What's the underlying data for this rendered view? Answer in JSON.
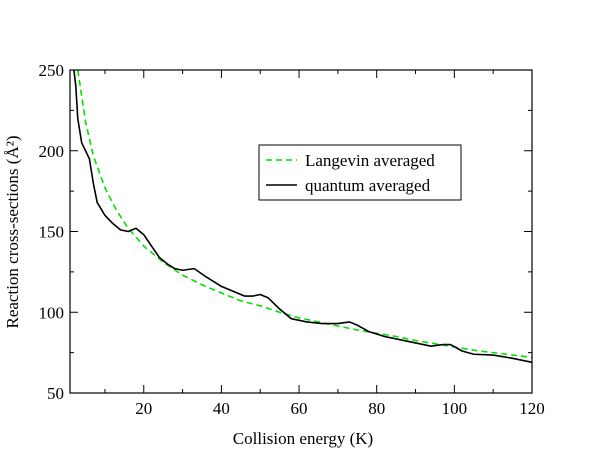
{
  "chart_data": {
    "type": "line",
    "title": "",
    "xlabel": "Collision energy (K)",
    "ylabel": "Reaction cross-sections (Å²)",
    "xlim": [
      1,
      120
    ],
    "ylim": [
      50,
      250
    ],
    "x_ticks": [
      20,
      40,
      60,
      80,
      100,
      120
    ],
    "y_ticks": [
      50,
      100,
      150,
      200,
      250
    ],
    "grid": false,
    "legend_position": "upper-right",
    "series": [
      {
        "name": "Langevin averaged",
        "color": "#00e000",
        "style": "dashed",
        "x": [
          3,
          5,
          7,
          10,
          13,
          16,
          20,
          25,
          30,
          35,
          40,
          45,
          50,
          55,
          60,
          65,
          70,
          75,
          80,
          85,
          90,
          95,
          100,
          105,
          110,
          115,
          120
        ],
        "y": [
          250,
          218,
          197,
          177,
          163,
          152,
          141,
          131,
          123,
          117,
          112,
          107,
          104,
          100,
          96.5,
          94,
          91.5,
          89,
          87,
          85,
          82.5,
          80.5,
          78.5,
          76.5,
          75,
          73.5,
          72
        ]
      },
      {
        "name": "quantum averaged",
        "color": "#000000",
        "style": "solid",
        "x": [
          2,
          2.5,
          3,
          4,
          5,
          6,
          7,
          8,
          10,
          12,
          14,
          16,
          18,
          20,
          22,
          24,
          26,
          28,
          30,
          33,
          36,
          40,
          43,
          46,
          48,
          50,
          52,
          55,
          58,
          62,
          66,
          70,
          73,
          75,
          78,
          82,
          86,
          90,
          94,
          97,
          99,
          102,
          105,
          110,
          115,
          120
        ],
        "y": [
          250,
          240,
          220,
          205,
          200,
          195,
          180,
          168,
          160,
          155,
          151,
          150,
          152,
          148,
          141,
          134,
          130,
          127,
          126,
          127,
          122,
          116,
          113,
          110,
          110,
          111,
          109,
          102,
          96,
          94,
          93,
          93,
          94,
          92,
          88,
          85,
          83,
          81,
          79,
          80,
          80,
          76,
          74,
          73.5,
          71.5,
          69
        ]
      }
    ]
  }
}
